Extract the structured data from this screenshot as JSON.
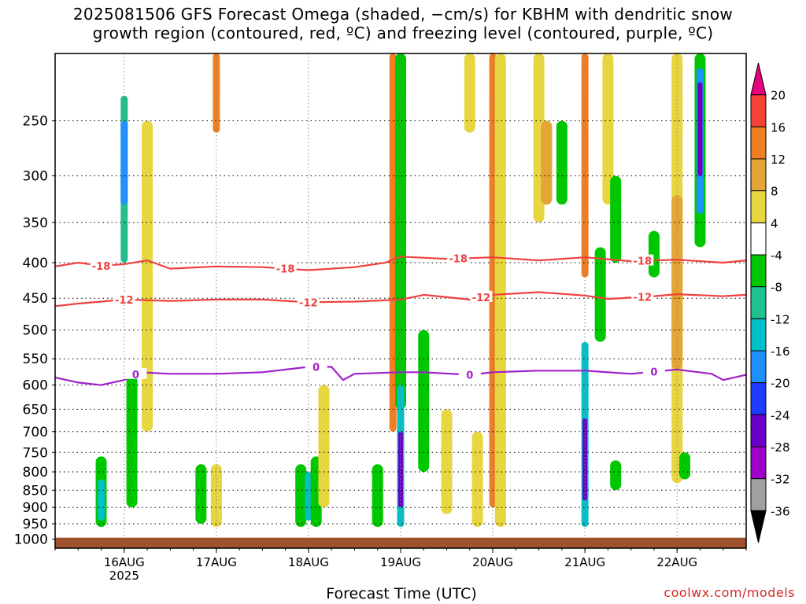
{
  "title": {
    "line1": "2025081506 GFS Forecast Omega (shaded, −cm/s) for KBHM with dendritic snow",
    "line2": "growth region (contoured, red, ºC) and freezing level (contoured, purple, ºC)"
  },
  "credit": "coolwx.com/models",
  "chart_data": {
    "type": "heatmap",
    "xlabel": "Forecast Time (UTC)",
    "ylabel": "",
    "x_ticks": [
      {
        "date": "2025-08-16T00",
        "label": "16AUG",
        "sublabel": "2025"
      },
      {
        "date": "2025-08-17T00",
        "label": "17AUG",
        "sublabel": ""
      },
      {
        "date": "2025-08-18T00",
        "label": "18AUG",
        "sublabel": ""
      },
      {
        "date": "2025-08-19T00",
        "label": "19AUG",
        "sublabel": ""
      },
      {
        "date": "2025-08-20T00",
        "label": "20AUG",
        "sublabel": ""
      },
      {
        "date": "2025-08-21T00",
        "label": "21AUG",
        "sublabel": ""
      },
      {
        "date": "2025-08-22T00",
        "label": "22AUG",
        "sublabel": ""
      }
    ],
    "x_range": [
      "2025-08-15T06",
      "2025-08-22T18"
    ],
    "y_axis": "pressure (hPa), decreasing upward",
    "y_ticks": [
      250,
      300,
      350,
      400,
      450,
      500,
      550,
      600,
      650,
      700,
      750,
      800,
      850,
      900,
      950,
      1000
    ],
    "y_range": [
      1000,
      200
    ],
    "colorbar": {
      "ticks": [
        20,
        16,
        12,
        8,
        4,
        -4,
        -8,
        -12,
        -16,
        -20,
        -24,
        -28,
        -32,
        -36
      ],
      "levels": [
        {
          "from": 20,
          "to": null,
          "color": "#e6007e"
        },
        {
          "from": 16,
          "to": 20,
          "color": "#f44336"
        },
        {
          "from": 12,
          "to": 16,
          "color": "#ef7f22"
        },
        {
          "from": 8,
          "to": 12,
          "color": "#e3a537"
        },
        {
          "from": 4,
          "to": 8,
          "color": "#e7d63f"
        },
        {
          "from": -4,
          "to": 4,
          "color": "#ffffff"
        },
        {
          "from": -8,
          "to": -4,
          "color": "#00c800"
        },
        {
          "from": -12,
          "to": -8,
          "color": "#20c090"
        },
        {
          "from": -16,
          "to": -12,
          "color": "#00c0c8"
        },
        {
          "from": -20,
          "to": -16,
          "color": "#1e90ff"
        },
        {
          "from": -24,
          "to": -20,
          "color": "#1e3cff"
        },
        {
          "from": -28,
          "to": -24,
          "color": "#6a00c8"
        },
        {
          "from": -32,
          "to": -28,
          "color": "#a000c8"
        },
        {
          "from": -36,
          "to": -32,
          "color": "#a0a0a0"
        },
        {
          "from": null,
          "to": -36,
          "color": "#000000"
        }
      ]
    },
    "contours": [
      {
        "name": "-18",
        "color": "#f04040",
        "label": "-18",
        "points": [
          [
            "2025-08-15T06",
            405
          ],
          [
            "2025-08-15T12",
            400
          ],
          [
            "2025-08-15T18",
            404
          ],
          [
            "2025-08-16T00",
            402
          ],
          [
            "2025-08-16T06",
            397
          ],
          [
            "2025-08-16T12",
            408
          ],
          [
            "2025-08-17T00",
            405
          ],
          [
            "2025-08-17T12",
            406
          ],
          [
            "2025-08-18T00",
            410
          ],
          [
            "2025-08-18T12",
            406
          ],
          [
            "2025-08-18T20",
            400
          ],
          [
            "2025-08-19T00",
            392
          ],
          [
            "2025-08-19T12",
            395
          ],
          [
            "2025-08-20T00",
            393
          ],
          [
            "2025-08-20T12",
            397
          ],
          [
            "2025-08-21T00",
            393
          ],
          [
            "2025-08-21T12",
            398
          ],
          [
            "2025-08-22T00",
            396
          ],
          [
            "2025-08-22T12",
            400
          ],
          [
            "2025-08-22T18",
            397
          ]
        ],
        "label_dates": [
          "2025-08-15T18",
          "2025-08-17T18",
          "2025-08-19T15",
          "2025-08-21T15"
        ]
      },
      {
        "name": "-12",
        "color": "#f04040",
        "label": "-12",
        "points": [
          [
            "2025-08-15T06",
            462
          ],
          [
            "2025-08-15T12",
            458
          ],
          [
            "2025-08-16T00",
            452
          ],
          [
            "2025-08-16T12",
            454
          ],
          [
            "2025-08-17T00",
            452
          ],
          [
            "2025-08-17T12",
            452
          ],
          [
            "2025-08-18T00",
            456
          ],
          [
            "2025-08-18T12",
            455
          ],
          [
            "2025-08-19T00",
            452
          ],
          [
            "2025-08-19T06",
            445
          ],
          [
            "2025-08-19T18",
            452
          ],
          [
            "2025-08-20T00",
            445
          ],
          [
            "2025-08-20T12",
            441
          ],
          [
            "2025-08-21T00",
            446
          ],
          [
            "2025-08-21T06",
            451
          ],
          [
            "2025-08-21T18",
            447
          ],
          [
            "2025-08-22T00",
            444
          ],
          [
            "2025-08-22T12",
            447
          ],
          [
            "2025-08-22T18",
            445
          ]
        ],
        "label_dates": [
          "2025-08-16T00",
          "2025-08-18T00",
          "2025-08-19T21",
          "2025-08-21T15"
        ]
      },
      {
        "name": "0",
        "color": "#a020c8",
        "label": "0",
        "points": [
          [
            "2025-08-15T06",
            585
          ],
          [
            "2025-08-15T12",
            595
          ],
          [
            "2025-08-15T18",
            600
          ],
          [
            "2025-08-16T00",
            590
          ],
          [
            "2025-08-16T04",
            575
          ],
          [
            "2025-08-16T12",
            578
          ],
          [
            "2025-08-17T00",
            578
          ],
          [
            "2025-08-17T12",
            575
          ],
          [
            "2025-08-18T00",
            565
          ],
          [
            "2025-08-18T06",
            565
          ],
          [
            "2025-08-18T09",
            590
          ],
          [
            "2025-08-18T12",
            578
          ],
          [
            "2025-08-19T00",
            575
          ],
          [
            "2025-08-19T06",
            575
          ],
          [
            "2025-08-19T18",
            580
          ],
          [
            "2025-08-20T00",
            575
          ],
          [
            "2025-08-20T12",
            572
          ],
          [
            "2025-08-21T00",
            572
          ],
          [
            "2025-08-21T12",
            578
          ],
          [
            "2025-08-22T00",
            570
          ],
          [
            "2025-08-22T09",
            578
          ],
          [
            "2025-08-22T12",
            590
          ],
          [
            "2025-08-22T18",
            580
          ]
        ],
        "label_dates": [
          "2025-08-16T03",
          "2025-08-18T02",
          "2025-08-19T18",
          "2025-08-21T18"
        ]
      }
    ],
    "ground": {
      "from_pressure": 1000,
      "color": "#a0522d"
    },
    "shaded_regions": [
      {
        "x": "2025-08-16T00",
        "p_top": 230,
        "p_bot": 400,
        "value": -12
      },
      {
        "x": "2025-08-16T00",
        "p_top": 250,
        "p_bot": 330,
        "value": -20
      },
      {
        "x": "2025-08-16T06",
        "p_top": 250,
        "p_bot": 700,
        "value": 6
      },
      {
        "x": "2025-08-15T18",
        "p_top": 760,
        "p_bot": 960,
        "value": -8
      },
      {
        "x": "2025-08-15T18",
        "p_top": 820,
        "p_bot": 940,
        "value": -14
      },
      {
        "x": "2025-08-16T02",
        "p_top": 580,
        "p_bot": 900,
        "value": -7
      },
      {
        "x": "2025-08-17T00",
        "p_top": 780,
        "p_bot": 960,
        "value": 6
      },
      {
        "x": "2025-08-16T20",
        "p_top": 780,
        "p_bot": 950,
        "value": -6
      },
      {
        "x": "2025-08-17T00",
        "p_top": 200,
        "p_bot": 260,
        "value": 14
      },
      {
        "x": "2025-08-17T22",
        "p_top": 780,
        "p_bot": 960,
        "value": -8
      },
      {
        "x": "2025-08-18T00",
        "p_top": 800,
        "p_bot": 940,
        "value": -16
      },
      {
        "x": "2025-08-18T02",
        "p_top": 760,
        "p_bot": 960,
        "value": -8
      },
      {
        "x": "2025-08-18T04",
        "p_top": 600,
        "p_bot": 900,
        "value": 5
      },
      {
        "x": "2025-08-18T18",
        "p_top": 780,
        "p_bot": 960,
        "value": -7
      },
      {
        "x": "2025-08-18T22",
        "p_top": 200,
        "p_bot": 700,
        "value": 14
      },
      {
        "x": "2025-08-19T00",
        "p_top": 200,
        "p_bot": 650,
        "value": -7
      },
      {
        "x": "2025-08-19T00",
        "p_top": 600,
        "p_bot": 960,
        "value": -16
      },
      {
        "x": "2025-08-19T00",
        "p_top": 700,
        "p_bot": 900,
        "value": -26
      },
      {
        "x": "2025-08-19T06",
        "p_top": 500,
        "p_bot": 800,
        "value": -7
      },
      {
        "x": "2025-08-19T12",
        "p_top": 650,
        "p_bot": 920,
        "value": 5
      },
      {
        "x": "2025-08-19T18",
        "p_top": 200,
        "p_bot": 260,
        "value": 6
      },
      {
        "x": "2025-08-19T20",
        "p_top": 820,
        "p_bot": 960,
        "value": -14
      },
      {
        "x": "2025-08-19T20",
        "p_top": 700,
        "p_bot": 960,
        "value": 5
      },
      {
        "x": "2025-08-20T00",
        "p_top": 200,
        "p_bot": 900,
        "value": 14
      },
      {
        "x": "2025-08-20T02",
        "p_top": 200,
        "p_bot": 960,
        "value": 6
      },
      {
        "x": "2025-08-20T12",
        "p_top": 200,
        "p_bot": 350,
        "value": 6
      },
      {
        "x": "2025-08-20T14",
        "p_top": 250,
        "p_bot": 330,
        "value": 10
      },
      {
        "x": "2025-08-20T18",
        "p_top": 250,
        "p_bot": 330,
        "value": -7
      },
      {
        "x": "2025-08-21T00",
        "p_top": 200,
        "p_bot": 420,
        "value": 14
      },
      {
        "x": "2025-08-21T00",
        "p_top": 520,
        "p_bot": 960,
        "value": -14
      },
      {
        "x": "2025-08-21T00",
        "p_top": 670,
        "p_bot": 880,
        "value": -28
      },
      {
        "x": "2025-08-21T04",
        "p_top": 380,
        "p_bot": 520,
        "value": -7
      },
      {
        "x": "2025-08-21T06",
        "p_top": 200,
        "p_bot": 330,
        "value": 6
      },
      {
        "x": "2025-08-21T08",
        "p_top": 300,
        "p_bot": 400,
        "value": -7
      },
      {
        "x": "2025-08-22T00",
        "p_top": 200,
        "p_bot": 830,
        "value": 6
      },
      {
        "x": "2025-08-22T00",
        "p_top": 320,
        "p_bot": 570,
        "value": 10
      },
      {
        "x": "2025-08-22T06",
        "p_top": 200,
        "p_bot": 380,
        "value": -8
      },
      {
        "x": "2025-08-22T06",
        "p_top": 210,
        "p_bot": 340,
        "value": -20
      },
      {
        "x": "2025-08-22T06",
        "p_top": 220,
        "p_bot": 300,
        "value": -28
      },
      {
        "x": "2025-08-22T02",
        "p_top": 750,
        "p_bot": 820,
        "value": -7
      },
      {
        "x": "2025-08-21T08",
        "p_top": 770,
        "p_bot": 850,
        "value": -7
      },
      {
        "x": "2025-08-21T18",
        "p_top": 360,
        "p_bot": 420,
        "value": -6
      }
    ]
  }
}
